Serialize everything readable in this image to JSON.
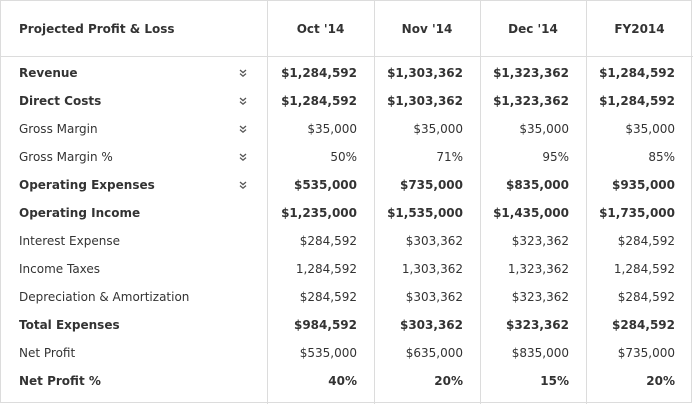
{
  "table": {
    "title": "Projected Profit & Loss",
    "columns": [
      "Oct '14",
      "Nov '14",
      "Dec '14",
      "FY2014"
    ],
    "rows": [
      {
        "label": "Revenue",
        "bold": true,
        "expandable": true,
        "values": [
          "$1,284,592",
          "$1,303,362",
          "$1,323,362",
          "$1,284,592"
        ]
      },
      {
        "label": "Direct Costs",
        "bold": true,
        "expandable": true,
        "values": [
          "$1,284,592",
          "$1,303,362",
          "$1,323,362",
          "$1,284,592"
        ]
      },
      {
        "label": "Gross Margin",
        "bold": false,
        "expandable": true,
        "values": [
          "$35,000",
          "$35,000",
          "$35,000",
          "$35,000"
        ]
      },
      {
        "label": "Gross Margin %",
        "bold": false,
        "expandable": true,
        "values": [
          "50%",
          "71%",
          "95%",
          "85%"
        ]
      },
      {
        "label": "Operating Expenses",
        "bold": true,
        "expandable": true,
        "values": [
          "$535,000",
          "$735,000",
          "$835,000",
          "$935,000"
        ]
      },
      {
        "label": "Operating Income",
        "bold": true,
        "expandable": false,
        "values": [
          "$1,235,000",
          "$1,535,000",
          "$1,435,000",
          "$1,735,000"
        ]
      },
      {
        "label": "Interest Expense",
        "bold": false,
        "expandable": false,
        "values": [
          "$284,592",
          "$303,362",
          "$323,362",
          "$284,592"
        ]
      },
      {
        "label": "Income Taxes",
        "bold": false,
        "expandable": false,
        "values": [
          "1,284,592",
          "1,303,362",
          "1,323,362",
          "1,284,592"
        ]
      },
      {
        "label": "Depreciation & Amortization",
        "bold": false,
        "expandable": false,
        "values": [
          "$284,592",
          "$303,362",
          "$323,362",
          "$284,592"
        ]
      },
      {
        "label": "Total Expenses",
        "bold": true,
        "expandable": false,
        "values": [
          "$984,592",
          "$303,362",
          "$323,362",
          "$284,592"
        ]
      },
      {
        "label": "Net Profit",
        "bold": false,
        "expandable": false,
        "values": [
          "$535,000",
          "$635,000",
          "$835,000",
          "$735,000"
        ]
      },
      {
        "label": "Net Profit %",
        "bold": true,
        "expandable": false,
        "values": [
          "40%",
          "20%",
          "15%",
          "20%"
        ]
      }
    ],
    "expand_icon": "double-chevron-down-icon",
    "border_color": "#dcdcdc",
    "text_color": "#333333"
  }
}
